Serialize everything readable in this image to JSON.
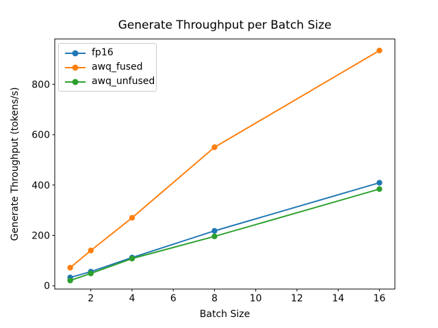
{
  "chart_data": {
    "type": "line",
    "title": "Generate Throughput per Batch Size",
    "xlabel": "Batch Size",
    "ylabel": "Generate Throughput (tokens/s)",
    "x": [
      1,
      2,
      4,
      8,
      16
    ],
    "series": [
      {
        "name": "fp16",
        "color": "#1f77b4",
        "values": [
          33,
          56,
          112,
          218,
          409
        ]
      },
      {
        "name": "awq_fused",
        "color": "#ff7f0e",
        "values": [
          72,
          140,
          270,
          550,
          934
        ]
      },
      {
        "name": "awq_unfused",
        "color": "#2ca02c",
        "values": [
          21,
          49,
          108,
          196,
          384
        ]
      }
    ],
    "xticks": [
      2,
      4,
      6,
      8,
      10,
      12,
      14,
      16
    ],
    "yticks": [
      0,
      200,
      400,
      600,
      800
    ],
    "xlim": [
      0.25,
      16.75
    ],
    "ylim": [
      -13,
      980
    ],
    "legend_position": "upper left",
    "grid": false,
    "marker": "o",
    "line_style": "solid",
    "background_color": "#ffffff",
    "axis_color": "#000000"
  }
}
